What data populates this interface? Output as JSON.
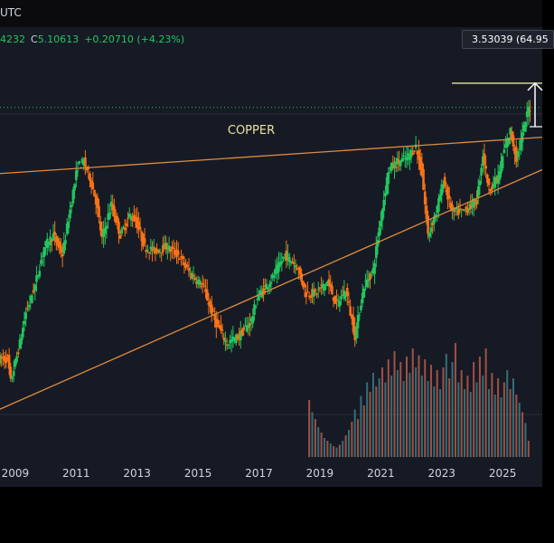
{
  "header": {
    "timezone": "UTC"
  },
  "ohlc": {
    "prev_fragment": "4232",
    "close_label": "C",
    "close_value": "5.10613",
    "change": "+0.20710 (+4.23%)"
  },
  "measure": {
    "label": "3.53039 (64.95"
  },
  "annotation": {
    "text": "COPPER"
  },
  "colors": {
    "up": "#22c55e",
    "down": "#f97316",
    "trendline": "#e08a3e",
    "price_line": "#22c55e",
    "background": "#161a25",
    "measure": "#e8e3a0"
  },
  "chart_data": {
    "type": "candlestick",
    "title": "COPPER",
    "x_ticks": [
      "2009",
      "2011",
      "2013",
      "2015",
      "2017",
      "2019",
      "2021",
      "2023",
      "2025"
    ],
    "x_range": [
      2008.5,
      2026.3
    ],
    "y_range": [
      1.6,
      5.7
    ],
    "price_series": [
      [
        2008.8,
        1.85
      ],
      [
        2008.9,
        1.55
      ],
      [
        2009.0,
        1.72
      ],
      [
        2009.2,
        2.05
      ],
      [
        2009.4,
        2.45
      ],
      [
        2009.7,
        2.8
      ],
      [
        2010.0,
        3.3
      ],
      [
        2010.3,
        3.45
      ],
      [
        2010.6,
        3.2
      ],
      [
        2010.9,
        3.9
      ],
      [
        2011.1,
        4.35
      ],
      [
        2011.3,
        4.4
      ],
      [
        2011.5,
        4.2
      ],
      [
        2011.7,
        3.9
      ],
      [
        2011.9,
        3.4
      ],
      [
        2012.2,
        3.85
      ],
      [
        2012.5,
        3.45
      ],
      [
        2012.8,
        3.7
      ],
      [
        2013.0,
        3.65
      ],
      [
        2013.3,
        3.3
      ],
      [
        2013.6,
        3.25
      ],
      [
        2014.0,
        3.3
      ],
      [
        2014.4,
        3.2
      ],
      [
        2014.8,
        2.95
      ],
      [
        2015.2,
        2.8
      ],
      [
        2015.6,
        2.35
      ],
      [
        2016.0,
        2.05
      ],
      [
        2016.4,
        2.15
      ],
      [
        2016.8,
        2.35
      ],
      [
        2017.0,
        2.65
      ],
      [
        2017.5,
        2.9
      ],
      [
        2017.9,
        3.2
      ],
      [
        2018.3,
        3.05
      ],
      [
        2018.6,
        2.7
      ],
      [
        2018.9,
        2.7
      ],
      [
        2019.3,
        2.85
      ],
      [
        2019.6,
        2.55
      ],
      [
        2019.9,
        2.75
      ],
      [
        2020.2,
        2.15
      ],
      [
        2020.5,
        2.8
      ],
      [
        2020.8,
        3.0
      ],
      [
        2021.0,
        3.55
      ],
      [
        2021.3,
        4.3
      ],
      [
        2021.6,
        4.4
      ],
      [
        2021.9,
        4.45
      ],
      [
        2022.2,
        4.6
      ],
      [
        2022.4,
        4.25
      ],
      [
        2022.6,
        3.45
      ],
      [
        2022.9,
        3.8
      ],
      [
        2023.1,
        4.15
      ],
      [
        2023.4,
        3.75
      ],
      [
        2023.7,
        3.75
      ],
      [
        2023.9,
        3.8
      ],
      [
        2024.2,
        3.9
      ],
      [
        2024.4,
        4.5
      ],
      [
        2024.6,
        4.05
      ],
      [
        2024.9,
        4.2
      ],
      [
        2025.1,
        4.55
      ],
      [
        2025.3,
        4.8
      ],
      [
        2025.5,
        4.45
      ],
      [
        2025.7,
        4.75
      ],
      [
        2025.9,
        5.1
      ]
    ],
    "volume_series": [
      [
        2018.65,
        0.42
      ],
      [
        2018.75,
        0.33
      ],
      [
        2018.85,
        0.28
      ],
      [
        2018.95,
        0.22
      ],
      [
        2019.05,
        0.18
      ],
      [
        2019.15,
        0.14
      ],
      [
        2019.25,
        0.12
      ],
      [
        2019.35,
        0.1
      ],
      [
        2019.45,
        0.08
      ],
      [
        2019.55,
        0.07
      ],
      [
        2019.65,
        0.09
      ],
      [
        2019.75,
        0.12
      ],
      [
        2019.85,
        0.16
      ],
      [
        2019.95,
        0.2
      ],
      [
        2020.05,
        0.26
      ],
      [
        2020.15,
        0.35
      ],
      [
        2020.25,
        0.28
      ],
      [
        2020.35,
        0.45
      ],
      [
        2020.45,
        0.38
      ],
      [
        2020.55,
        0.55
      ],
      [
        2020.65,
        0.48
      ],
      [
        2020.75,
        0.62
      ],
      [
        2020.85,
        0.52
      ],
      [
        2020.95,
        0.58
      ],
      [
        2021.05,
        0.66
      ],
      [
        2021.15,
        0.55
      ],
      [
        2021.25,
        0.72
      ],
      [
        2021.35,
        0.6
      ],
      [
        2021.45,
        0.78
      ],
      [
        2021.55,
        0.64
      ],
      [
        2021.65,
        0.7
      ],
      [
        2021.75,
        0.56
      ],
      [
        2021.85,
        0.74
      ],
      [
        2021.95,
        0.62
      ],
      [
        2022.05,
        0.8
      ],
      [
        2022.15,
        0.66
      ],
      [
        2022.25,
        0.75
      ],
      [
        2022.35,
        0.6
      ],
      [
        2022.45,
        0.72
      ],
      [
        2022.55,
        0.56
      ],
      [
        2022.65,
        0.68
      ],
      [
        2022.75,
        0.52
      ],
      [
        2022.85,
        0.64
      ],
      [
        2022.95,
        0.5
      ],
      [
        2023.05,
        0.66
      ],
      [
        2023.15,
        0.76
      ],
      [
        2023.25,
        0.58
      ],
      [
        2023.35,
        0.7
      ],
      [
        2023.45,
        0.84
      ],
      [
        2023.55,
        0.55
      ],
      [
        2023.65,
        0.64
      ],
      [
        2023.75,
        0.5
      ],
      [
        2023.85,
        0.6
      ],
      [
        2023.95,
        0.48
      ],
      [
        2024.05,
        0.7
      ],
      [
        2024.15,
        0.55
      ],
      [
        2024.25,
        0.74
      ],
      [
        2024.35,
        0.6
      ],
      [
        2024.45,
        0.8
      ],
      [
        2024.55,
        0.5
      ],
      [
        2024.65,
        0.62
      ],
      [
        2024.75,
        0.46
      ],
      [
        2024.85,
        0.58
      ],
      [
        2024.95,
        0.44
      ],
      [
        2025.05,
        0.55
      ],
      [
        2025.15,
        0.64
      ],
      [
        2025.25,
        0.5
      ],
      [
        2025.35,
        0.58
      ],
      [
        2025.45,
        0.46
      ],
      [
        2025.55,
        0.4
      ],
      [
        2025.65,
        0.33
      ],
      [
        2025.75,
        0.25
      ],
      [
        2025.85,
        0.12
      ]
    ],
    "trendlines": [
      {
        "name": "upper",
        "from": [
          2008.5,
          4.25
        ],
        "to": [
          2026.3,
          4.72
        ]
      },
      {
        "name": "lower",
        "from": [
          2008.5,
          1.2
        ],
        "to": [
          2026.3,
          4.3
        ]
      }
    ],
    "current_price": 5.10613,
    "measure_top": 5.42
  }
}
